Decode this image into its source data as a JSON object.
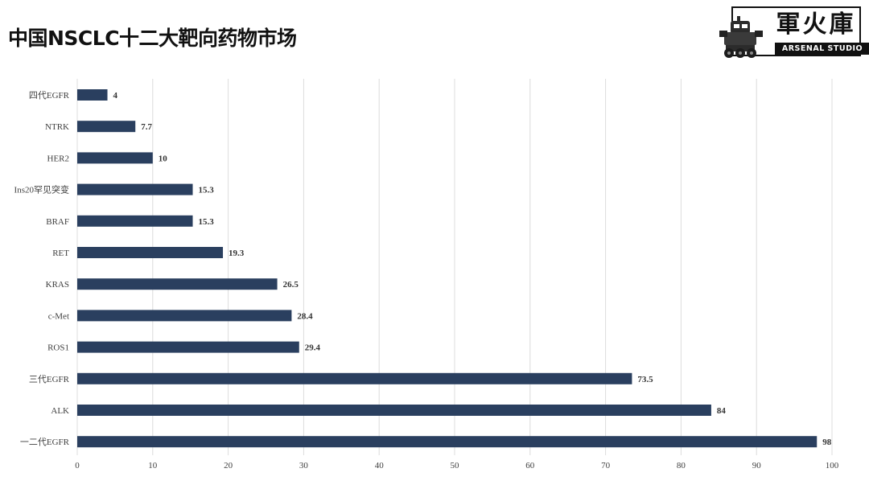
{
  "page": {
    "title": "中国NSCLC十二大靶向药物市场"
  },
  "logo": {
    "text": "軍火庫",
    "subtext": "ARSENAL STUDIO",
    "icon": "mech-robot-icon"
  },
  "chart_data": {
    "type": "bar",
    "orientation": "horizontal",
    "categories": [
      "四代EGFR",
      "NTRK",
      "HER2",
      "Ins20罕见突变",
      "BRAF",
      "RET",
      "KRAS",
      "c-Met",
      "ROS1",
      "三代EGFR",
      "ALK",
      "一二代EGFR"
    ],
    "values": [
      4,
      7.7,
      10,
      15.3,
      15.3,
      19.3,
      26.5,
      28.4,
      29.4,
      73.5,
      84,
      98
    ],
    "value_labels": [
      "4",
      "7.7",
      "10",
      "15.3",
      "15.3",
      "19.3",
      "26.5",
      "28.4",
      "29.4",
      "73.5",
      "84",
      "98"
    ],
    "xlim": [
      0,
      100
    ],
    "xticks": [
      0,
      10,
      20,
      30,
      40,
      50,
      60,
      70,
      80,
      90,
      100
    ],
    "grid": "vertical",
    "bar_color": "#2a3f5f",
    "data_labels": true
  }
}
